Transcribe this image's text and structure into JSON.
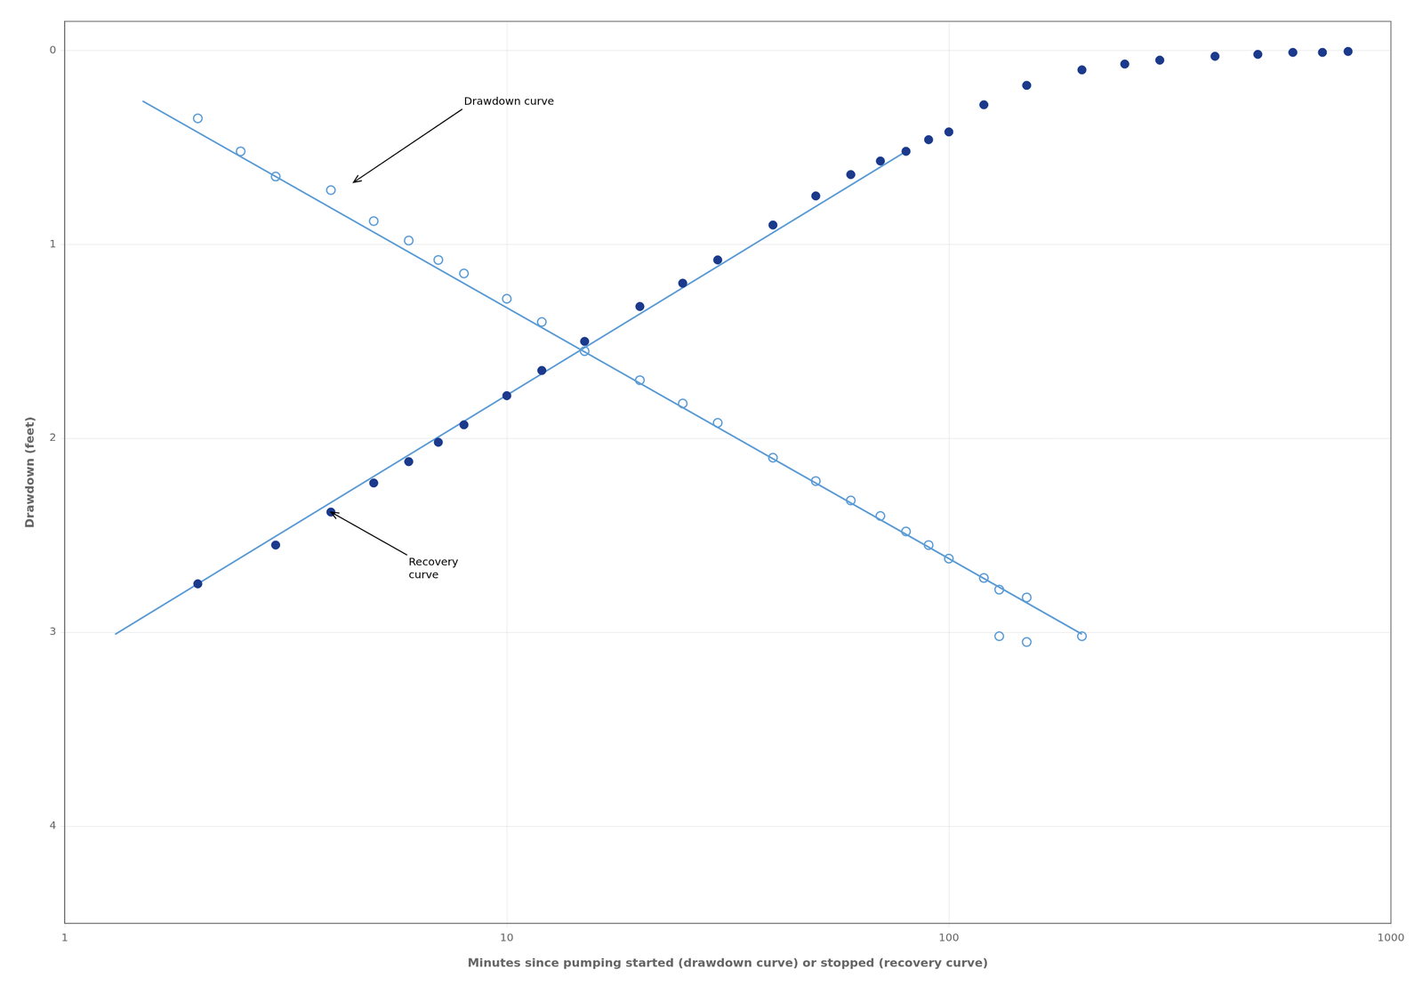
{
  "chart_data": {
    "type": "scatter",
    "xlabel": "Minutes since pumping started (drawdown curve) or stopped (recovery curve)",
    "ylabel": "Drawdown (feet)",
    "log": "x",
    "grid": true,
    "xlim": [
      1,
      1000
    ],
    "xticks": [
      1,
      10,
      100,
      1000
    ],
    "ylim": [
      4.5,
      -0.15
    ],
    "yticks": [
      0,
      1,
      2,
      3,
      4
    ],
    "series": [
      {
        "type": "line",
        "color": "#5b9bd5",
        "line_style": "solid",
        "x": [
          1.3,
          80
        ],
        "values": [
          3.0104,
          0.52
        ]
      },
      {
        "type": "line",
        "color": "#5b9bd5",
        "line_style": "solid",
        "x": [
          1.5,
          200
        ],
        "values": [
          0.2606,
          3.0094
        ]
      },
      {
        "type": "scatter",
        "color": "#1b3a8c",
        "marker": "circle",
        "x": [
          2,
          3,
          4,
          5,
          6,
          7,
          8,
          10,
          12,
          15,
          20,
          25,
          30,
          40,
          50,
          60,
          70,
          80,
          90,
          100,
          120,
          150,
          200,
          250,
          300,
          400,
          500,
          600,
          700,
          800
        ],
        "values": [
          2.75,
          2.55,
          2.38,
          2.23,
          2.12,
          2.02,
          1.93,
          1.78,
          1.65,
          1.5,
          1.32,
          1.2,
          1.08,
          0.9,
          0.75,
          0.64,
          0.57,
          0.52,
          0.46,
          0.42,
          0.28,
          0.18,
          0.1,
          0.07,
          0.05,
          0.03,
          0.02,
          0.01,
          0.01,
          0.005
        ]
      },
      {
        "type": "scatter",
        "color": "#5b9bd5",
        "marker": "open_circle",
        "x": [
          2,
          2.5,
          3,
          4,
          5,
          6,
          7,
          8,
          10,
          12,
          15,
          20,
          25,
          30,
          40,
          50,
          60,
          70,
          80,
          90,
          100,
          120,
          130,
          150,
          200,
          130,
          150
        ],
        "values": [
          0.35,
          0.52,
          0.65,
          0.72,
          0.88,
          0.98,
          1.08,
          1.15,
          1.28,
          1.4,
          1.55,
          1.7,
          1.82,
          1.92,
          2.1,
          2.22,
          2.32,
          2.4,
          2.48,
          2.55,
          2.62,
          2.72,
          2.78,
          2.82,
          3.02,
          3.02,
          3.05
        ]
      }
    ],
    "annotations": [
      {
        "text": "Drawdown curve",
        "x": 8,
        "y": 0.28,
        "arrow_x": 4.5,
        "arrow_y": 0.68
      },
      {
        "text": "Recovery\ncurve",
        "x": 6,
        "y": 2.72,
        "arrow_x": 4.0,
        "arrow_y": 2.38
      }
    ]
  }
}
